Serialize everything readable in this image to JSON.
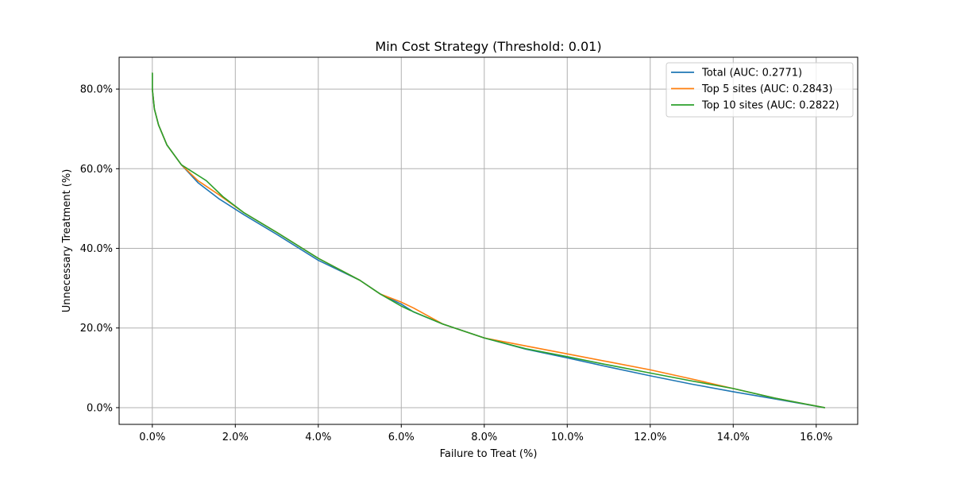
{
  "chart_data": {
    "type": "line",
    "title": "Min Cost Strategy (Threshold: 0.01)",
    "xlabel": "Failure to Treat (%)",
    "ylabel": "Unnecessary Treatment (%)",
    "xlim": [
      -0.8,
      17.0
    ],
    "ylim": [
      -4.2,
      88.0
    ],
    "xticks": [
      0,
      2,
      4,
      6,
      8,
      10,
      12,
      14,
      16
    ],
    "xtick_labels": [
      "0.0%",
      "2.0%",
      "4.0%",
      "6.0%",
      "8.0%",
      "10.0%",
      "12.0%",
      "14.0%",
      "16.0%"
    ],
    "yticks": [
      0,
      20,
      40,
      60,
      80
    ],
    "ytick_labels": [
      "0.0%",
      "20.0%",
      "40.0%",
      "60.0%",
      "80.0%"
    ],
    "grid": true,
    "legend_position": "upper right",
    "series": [
      {
        "name": "Total (AUC: 0.2771)",
        "color": "#1f77b4",
        "x": [
          0.0,
          0.0,
          0.05,
          0.15,
          0.35,
          0.7,
          1.1,
          1.6,
          2.2,
          3.0,
          4.0,
          5.0,
          5.5,
          6.0,
          6.3,
          7.0,
          8.0,
          9.0,
          10.0,
          11.0,
          12.0,
          13.0,
          14.0,
          15.0,
          16.2
        ],
        "y": [
          84.0,
          80.0,
          75.0,
          71.0,
          66.0,
          61.0,
          56.5,
          52.5,
          48.5,
          43.5,
          37.0,
          32.0,
          28.5,
          26.0,
          24.0,
          21.0,
          17.5,
          14.7,
          12.5,
          10.2,
          8.0,
          5.9,
          4.0,
          2.2,
          0.0
        ]
      },
      {
        "name": "Top 5 sites (AUC: 0.2843)",
        "color": "#ff7f0e",
        "x": [
          0.0,
          0.0,
          0.05,
          0.15,
          0.35,
          0.7,
          1.1,
          1.6,
          2.2,
          3.0,
          4.0,
          5.0,
          5.5,
          6.0,
          6.3,
          7.0,
          8.0,
          9.0,
          10.0,
          11.0,
          12.0,
          13.0,
          14.0,
          15.0,
          16.2
        ],
        "y": [
          84.0,
          80.0,
          75.0,
          71.0,
          66.0,
          61.0,
          57.0,
          53.5,
          49.0,
          44.0,
          37.5,
          32.0,
          28.5,
          26.5,
          25.0,
          21.0,
          17.5,
          15.5,
          13.5,
          11.5,
          9.5,
          7.2,
          4.8,
          2.4,
          0.0
        ]
      },
      {
        "name": "Top 10 sites (AUC: 0.2822)",
        "color": "#2ca02c",
        "x": [
          0.0,
          0.0,
          0.05,
          0.15,
          0.35,
          0.7,
          1.3,
          1.7,
          2.2,
          3.0,
          4.0,
          5.0,
          5.5,
          6.0,
          6.2,
          7.0,
          8.0,
          9.0,
          10.0,
          11.0,
          12.0,
          13.0,
          14.0,
          15.0,
          16.2
        ],
        "y": [
          84.0,
          80.0,
          75.0,
          71.0,
          66.0,
          61.0,
          57.0,
          53.0,
          49.0,
          44.0,
          37.5,
          32.0,
          28.5,
          25.5,
          24.5,
          21.0,
          17.5,
          14.8,
          12.8,
          10.7,
          8.7,
          6.7,
          4.8,
          2.4,
          0.0
        ]
      }
    ]
  }
}
